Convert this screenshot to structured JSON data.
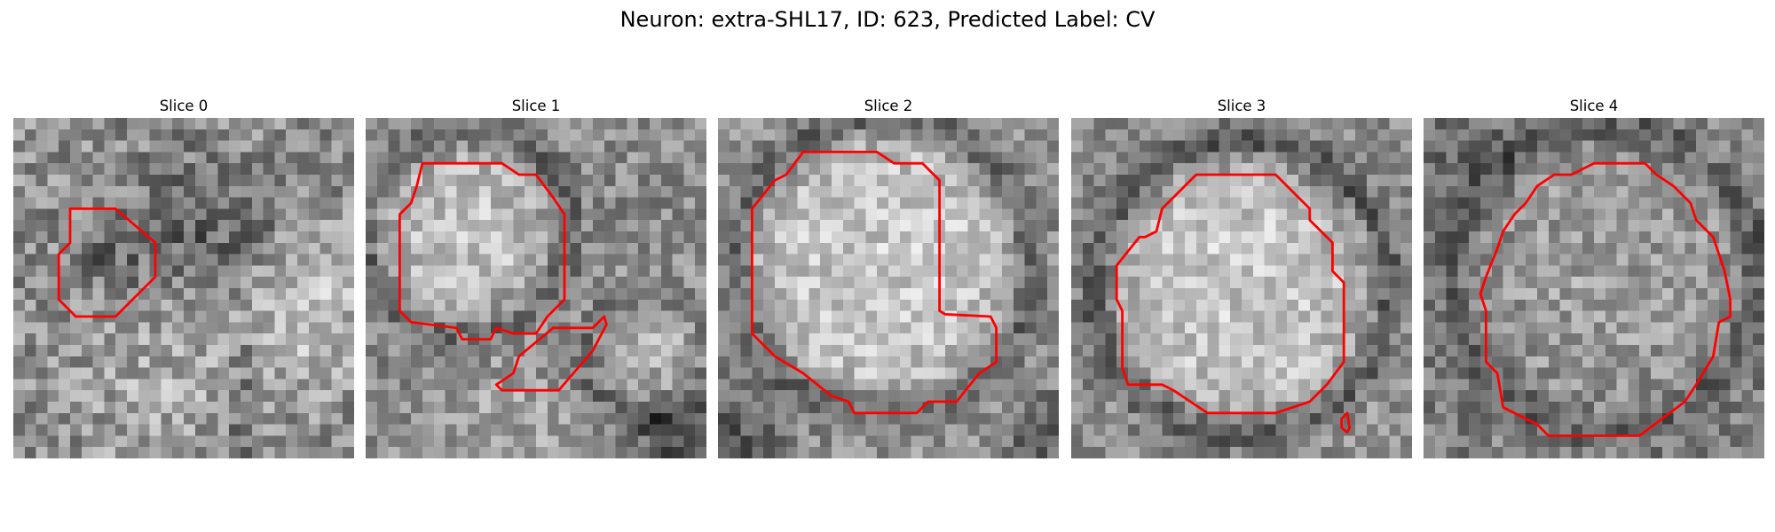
{
  "figure": {
    "title": "Neuron: extra-SHL17, ID: 623, Predicted Label: CV"
  },
  "colors": {
    "background": "#ffffff",
    "contour": "#ff0000",
    "colormap": "gray"
  },
  "panels": [
    {
      "title": "Slice 0"
    },
    {
      "title": "Slice 1"
    },
    {
      "title": "Slice 2"
    },
    {
      "title": "Slice 3"
    },
    {
      "title": "Slice 4"
    }
  ]
}
